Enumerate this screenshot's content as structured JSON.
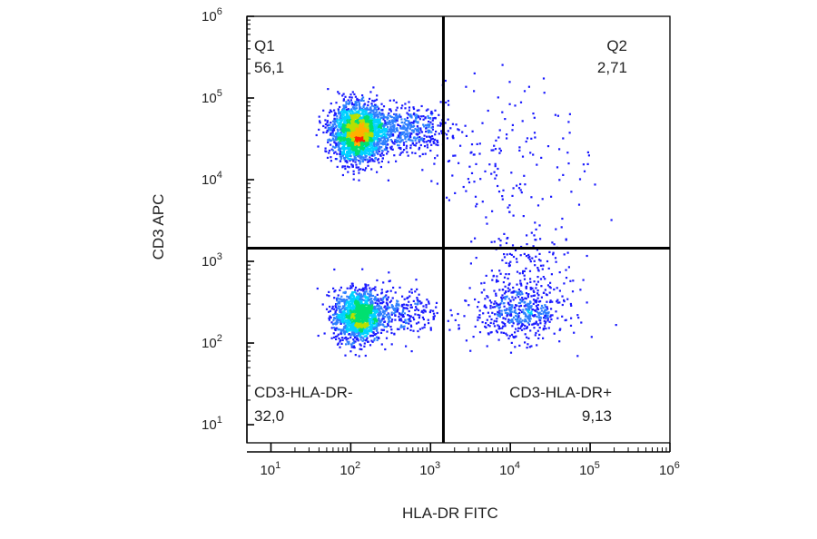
{
  "chart_data": {
    "type": "scatter",
    "plot_style": "flow cytometry density dot plot (quadrant gate)",
    "xlabel": "HLA-DR FITC",
    "ylabel": "CD3 APC",
    "x_scale": "log",
    "y_scale": "log",
    "xlim": [
      5,
      1000000
    ],
    "ylim": [
      6,
      1000000
    ],
    "x_ticks": [
      {
        "base": "10",
        "exp": "1",
        "value": 10
      },
      {
        "base": "10",
        "exp": "2",
        "value": 100
      },
      {
        "base": "10",
        "exp": "3",
        "value": 1000
      },
      {
        "base": "10",
        "exp": "4",
        "value": 10000
      },
      {
        "base": "10",
        "exp": "5",
        "value": 100000
      },
      {
        "base": "10",
        "exp": "6",
        "value": 1000000
      }
    ],
    "y_ticks": [
      {
        "base": "10",
        "exp": "1",
        "value": 10
      },
      {
        "base": "10",
        "exp": "2",
        "value": 100
      },
      {
        "base": "10",
        "exp": "3",
        "value": 1000
      },
      {
        "base": "10",
        "exp": "4",
        "value": 10000
      },
      {
        "base": "10",
        "exp": "5",
        "value": 100000
      },
      {
        "base": "10",
        "exp": "6",
        "value": 1000000
      }
    ],
    "gates": {
      "x": 1450,
      "y": 1450
    },
    "quadrants": [
      {
        "id": "Q1",
        "label": "Q1",
        "value": "56,1"
      },
      {
        "id": "Q2",
        "label": "Q2",
        "value": "2,71"
      },
      {
        "id": "Q3",
        "label": "CD3-HLA-DR-",
        "value": "32,0"
      },
      {
        "id": "Q4",
        "label": "CD3-HLA-DR+",
        "value": "9,13"
      }
    ],
    "clusters": [
      {
        "name": "Q1 main",
        "x_center": 120,
        "y_center": 38000,
        "sx": 0.16,
        "sy": 0.17,
        "n": 2300
      },
      {
        "name": "Q1 tail",
        "x_center": 400,
        "y_center": 42000,
        "sx": 0.3,
        "sy": 0.14,
        "n": 550
      },
      {
        "name": "Q2 sparse",
        "x_center": 9000,
        "y_center": 20000,
        "sx": 0.55,
        "sy": 0.45,
        "n": 160
      },
      {
        "name": "Q3 main",
        "x_center": 120,
        "y_center": 220,
        "sx": 0.15,
        "sy": 0.16,
        "n": 1350
      },
      {
        "name": "Q3 tail",
        "x_center": 380,
        "y_center": 240,
        "sx": 0.28,
        "sy": 0.15,
        "n": 300
      },
      {
        "name": "Q4 cluster",
        "x_center": 13000,
        "y_center": 250,
        "sx": 0.28,
        "sy": 0.18,
        "n": 520
      },
      {
        "name": "Q4 spread",
        "x_center": 15000,
        "y_center": 900,
        "sx": 0.3,
        "sy": 0.25,
        "n": 130
      }
    ],
    "density_colors": [
      "#1a1aff",
      "#2e7fff",
      "#00d2ff",
      "#00e070",
      "#b8e000",
      "#ffb000",
      "#ff2000"
    ],
    "grid": false,
    "legend": "none"
  }
}
